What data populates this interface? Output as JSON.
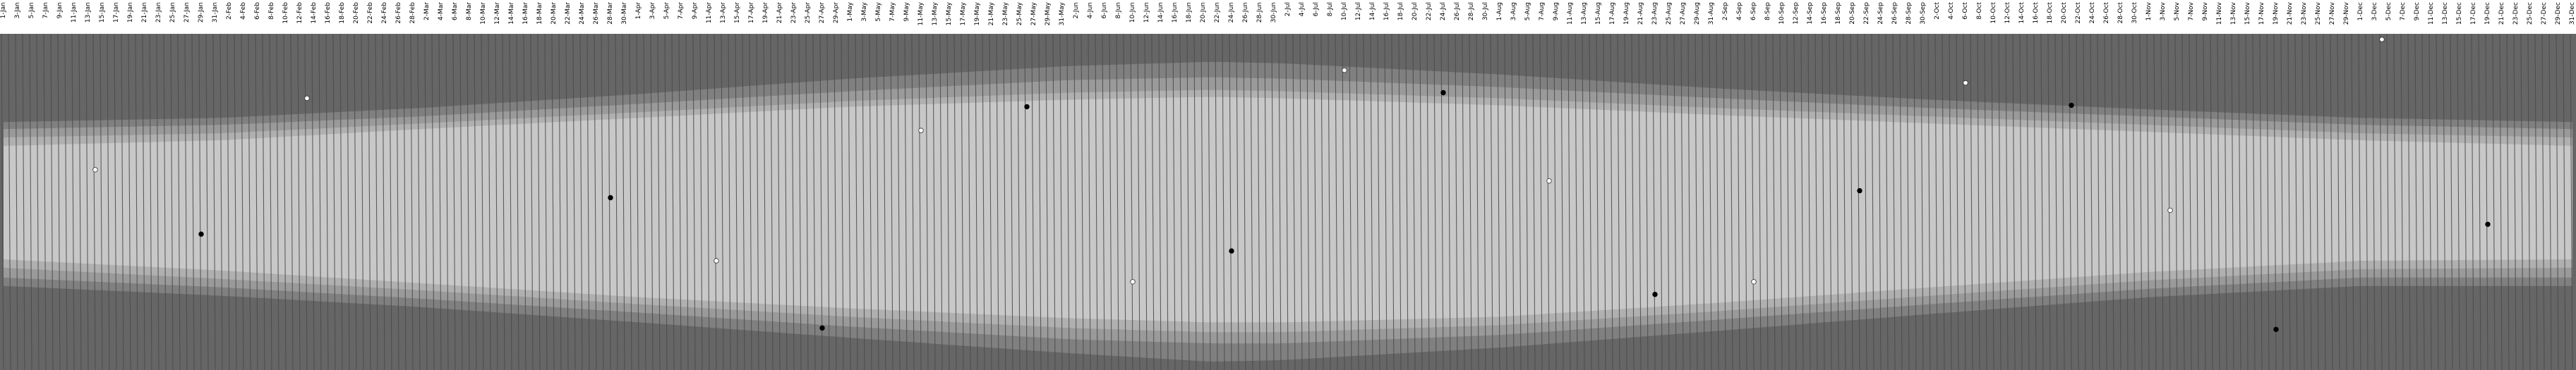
{
  "chart_data": {
    "type": "area",
    "title": "",
    "xlabel": "",
    "ylabel": "",
    "x_tick_labels": [
      "1-Jan",
      "3-Jan",
      "5-Jan",
      "7-Jan",
      "9-Jan",
      "11-Jan",
      "13-Jan",
      "15-Jan",
      "17-Jan",
      "19-Jan",
      "21-Jan",
      "23-Jan",
      "25-Jan",
      "27-Jan",
      "29-Jan",
      "31-Jan",
      "2-Feb",
      "4-Feb",
      "6-Feb",
      "8-Feb",
      "10-Feb",
      "12-Feb",
      "14-Feb",
      "16-Feb",
      "18-Feb",
      "20-Feb",
      "22-Feb",
      "24-Feb",
      "26-Feb",
      "28-Feb",
      "2-Mar",
      "4-Mar",
      "6-Mar",
      "8-Mar",
      "10-Mar",
      "12-Mar",
      "14-Mar",
      "16-Mar",
      "18-Mar",
      "20-Mar",
      "22-Mar",
      "24-Mar",
      "26-Mar",
      "28-Mar",
      "30-Mar",
      "1-Apr",
      "3-Apr",
      "5-Apr",
      "7-Apr",
      "9-Apr",
      "11-Apr",
      "13-Apr",
      "15-Apr",
      "17-Apr",
      "19-Apr",
      "21-Apr",
      "23-Apr",
      "25-Apr",
      "27-Apr",
      "29-Apr",
      "1-May",
      "3-May",
      "5-May",
      "7-May",
      "9-May",
      "11-May",
      "13-May",
      "15-May",
      "17-May",
      "19-May",
      "21-May",
      "23-May",
      "25-May",
      "27-May",
      "29-May",
      "31-May",
      "2-Jun",
      "4-Jun",
      "6-Jun",
      "8-Jun",
      "10-Jun",
      "12-Jun",
      "14-Jun",
      "16-Jun",
      "18-Jun",
      "20-Jun",
      "22-Jun",
      "24-Jun",
      "26-Jun",
      "28-Jun",
      "30-Jun",
      "2-Jul",
      "4-Jul",
      "6-Jul",
      "8-Jul",
      "10-Jul",
      "12-Jul",
      "14-Jul",
      "16-Jul",
      "18-Jul",
      "20-Jul",
      "22-Jul",
      "24-Jul",
      "26-Jul",
      "28-Jul",
      "30-Jul",
      "1-Aug",
      "3-Aug",
      "5-Aug",
      "7-Aug",
      "9-Aug",
      "11-Aug",
      "13-Aug",
      "15-Aug",
      "17-Aug",
      "19-Aug",
      "21-Aug",
      "23-Aug",
      "25-Aug",
      "27-Aug",
      "29-Aug",
      "31-Aug",
      "2-Sep",
      "4-Sep",
      "6-Sep",
      "8-Sep",
      "10-Sep",
      "12-Sep",
      "14-Sep",
      "16-Sep",
      "18-Sep",
      "20-Sep",
      "22-Sep",
      "24-Sep",
      "26-Sep",
      "28-Sep",
      "30-Sep",
      "2-Oct",
      "4-Oct",
      "6-Oct",
      "8-Oct",
      "10-Oct",
      "12-Oct",
      "14-Oct",
      "16-Oct",
      "18-Oct",
      "20-Oct",
      "22-Oct",
      "24-Oct",
      "26-Oct",
      "28-Oct",
      "30-Oct",
      "1-Nov",
      "3-Nov",
      "5-Nov",
      "7-Nov",
      "9-Nov",
      "11-Nov",
      "13-Nov",
      "15-Nov",
      "17-Nov",
      "19-Nov",
      "21-Nov",
      "23-Nov",
      "25-Nov",
      "27-Nov",
      "29-Nov",
      "1-Dec",
      "3-Dec",
      "5-Dec",
      "7-Dec",
      "9-Dec",
      "11-Dec",
      "13-Dec",
      "15-Dec",
      "17-Dec",
      "19-Dec",
      "21-Dec",
      "23-Dec",
      "25-Dec",
      "27-Dec",
      "29-Dec",
      "31-Dec"
    ],
    "ylim": [
      0,
      24
    ],
    "y_axis_visible": false,
    "grid": false,
    "legend": "none",
    "band_boundaries_hours": {
      "astronomical_dawn": {
        "days": [
          1,
          32,
          60,
          91,
          121,
          152,
          172,
          182,
          213,
          244,
          274,
          305,
          335,
          365
        ],
        "values": [
          6.3,
          6.0,
          5.3,
          4.3,
          3.2,
          2.3,
          2.0,
          2.1,
          2.9,
          3.9,
          4.7,
          5.4,
          6.0,
          6.3
        ]
      },
      "nautical_dawn": {
        "days": [
          1,
          32,
          60,
          91,
          121,
          152,
          172,
          182,
          213,
          244,
          274,
          305,
          335,
          365
        ],
        "values": [
          6.8,
          6.5,
          5.9,
          5.0,
          4.1,
          3.3,
          3.1,
          3.2,
          3.8,
          4.6,
          5.3,
          5.9,
          6.5,
          6.8
        ]
      },
      "civil_dawn": {
        "days": [
          1,
          32,
          60,
          91,
          121,
          152,
          172,
          182,
          213,
          244,
          274,
          305,
          335,
          365
        ],
        "values": [
          7.4,
          7.1,
          6.4,
          5.6,
          4.8,
          4.2,
          4.0,
          4.1,
          4.6,
          5.3,
          5.9,
          6.5,
          7.1,
          7.4
        ]
      },
      "sunrise": {
        "days": [
          1,
          32,
          60,
          91,
          121,
          152,
          172,
          182,
          213,
          244,
          274,
          305,
          335,
          365
        ],
        "values": [
          8.0,
          7.6,
          6.8,
          6.0,
          5.2,
          4.7,
          4.5,
          4.6,
          5.1,
          5.8,
          6.4,
          7.0,
          7.6,
          8.0
        ]
      },
      "sunset": {
        "days": [
          1,
          32,
          60,
          91,
          121,
          152,
          172,
          182,
          213,
          244,
          274,
          305,
          335,
          365
        ],
        "values": [
          16.1,
          16.9,
          17.8,
          18.8,
          19.6,
          20.3,
          20.6,
          20.6,
          20.2,
          19.2,
          18.1,
          17.0,
          16.2,
          16.1
        ]
      },
      "civil_dusk": {
        "days": [
          1,
          32,
          60,
          91,
          121,
          152,
          172,
          182,
          213,
          244,
          274,
          305,
          335,
          365
        ],
        "values": [
          16.7,
          17.5,
          18.3,
          19.3,
          20.2,
          21.0,
          21.3,
          21.3,
          20.8,
          19.8,
          18.7,
          17.6,
          16.8,
          16.7
        ]
      },
      "nautical_dusk": {
        "days": [
          1,
          32,
          60,
          91,
          121,
          152,
          172,
          182,
          213,
          244,
          274,
          305,
          335,
          365
        ],
        "values": [
          17.4,
          18.1,
          18.9,
          19.9,
          20.9,
          21.8,
          22.1,
          22.1,
          21.5,
          20.4,
          19.3,
          18.2,
          17.4,
          17.4
        ]
      },
      "astronomical_dusk": {
        "days": [
          1,
          32,
          60,
          91,
          121,
          152,
          172,
          182,
          213,
          244,
          274,
          305,
          335,
          365
        ],
        "values": [
          18.0,
          18.7,
          19.5,
          20.6,
          21.7,
          22.8,
          23.4,
          23.3,
          22.4,
          21.2,
          20.0,
          18.8,
          18.0,
          18.0
        ]
      }
    },
    "band_colors": {
      "night": "#666666",
      "astronomical_twilight": "#808080",
      "nautical_twilight": "#9a9a9a",
      "civil_twilight": "#b0b0b0",
      "day": "#c8c8c8",
      "day_stripe": "#4a4a4a"
    },
    "series": [
      {
        "marker": "black-dot",
        "days": [
          29,
          87,
          117,
          146,
          175,
          205,
          235,
          264,
          294,
          323,
          353
        ],
        "hours": [
          14.3,
          11.7,
          21.0,
          5.2,
          15.5,
          4.2,
          18.6,
          11.2,
          5.1,
          21.1,
          13.6
        ]
      },
      {
        "marker": "white-dot",
        "days": [
          14,
          44,
          102,
          131,
          161,
          191,
          220,
          249,
          279,
          308,
          338
        ],
        "hours": [
          9.7,
          4.6,
          16.2,
          6.9,
          17.7,
          2.6,
          10.5,
          17.7,
          3.5,
          12.6,
          0.4
        ]
      }
    ]
  }
}
